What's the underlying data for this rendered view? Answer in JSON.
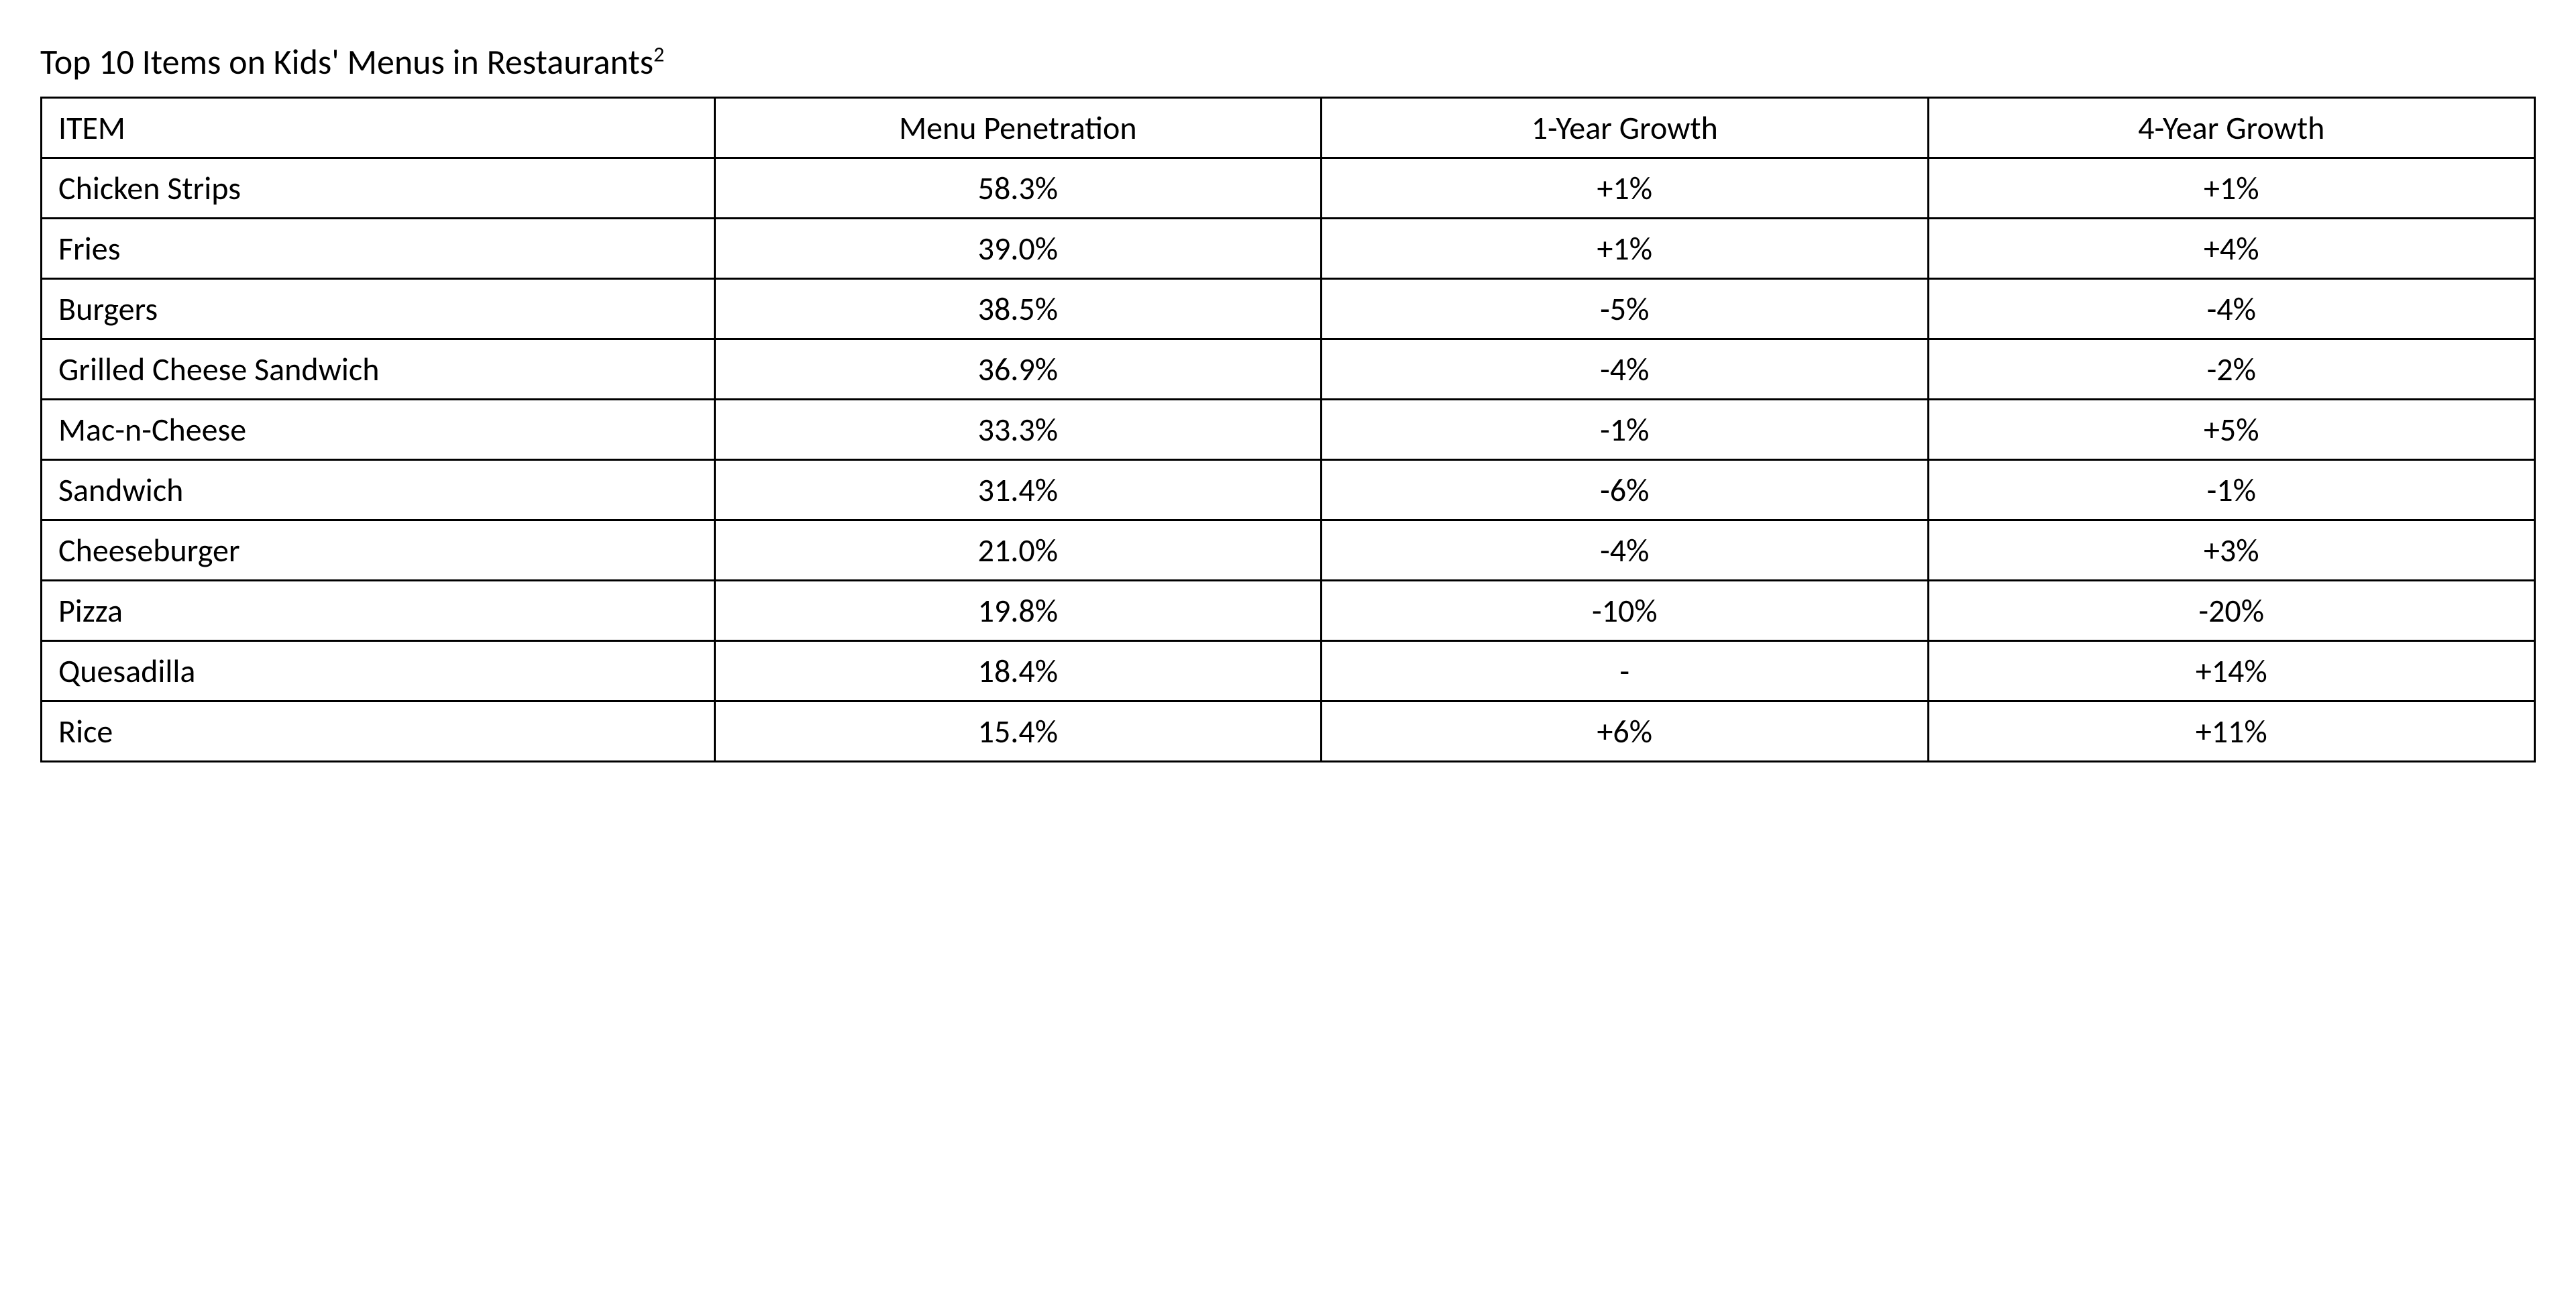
{
  "title": {
    "text": "Top 10 Items on Kids' Menus in Restaurants",
    "superscript": "2",
    "fontsize": 52,
    "color": "#000000"
  },
  "table": {
    "type": "table",
    "background_color": "#ffffff",
    "border_color": "#000000",
    "border_width": 3,
    "cell_fontsize": 48,
    "cell_color": "#000000",
    "columns": [
      {
        "label": "ITEM",
        "align": "left",
        "width_pct": 27
      },
      {
        "label": "Menu Penetration",
        "align": "center",
        "width_pct": 24.333
      },
      {
        "label": "1-Year Growth",
        "align": "center",
        "width_pct": 24.333
      },
      {
        "label": "4-Year Growth",
        "align": "center",
        "width_pct": 24.333
      }
    ],
    "rows": [
      {
        "item": "Chicken Strips",
        "penetration": "58.3%",
        "growth1": "+1%",
        "growth4": "+1%"
      },
      {
        "item": "Fries",
        "penetration": "39.0%",
        "growth1": "+1%",
        "growth4": "+4%"
      },
      {
        "item": "Burgers",
        "penetration": "38.5%",
        "growth1": "-5%",
        "growth4": "-4%"
      },
      {
        "item": "Grilled Cheese Sandwich",
        "penetration": "36.9%",
        "growth1": "-4%",
        "growth4": "-2%"
      },
      {
        "item": "Mac-n-Cheese",
        "penetration": "33.3%",
        "growth1": "-1%",
        "growth4": "+5%"
      },
      {
        "item": "Sandwich",
        "penetration": "31.4%",
        "growth1": "-6%",
        "growth4": "-1%"
      },
      {
        "item": "Cheeseburger",
        "penetration": "21.0%",
        "growth1": "-4%",
        "growth4": "+3%"
      },
      {
        "item": "Pizza",
        "penetration": "19.8%",
        "growth1": "-10%",
        "growth4": "-20%"
      },
      {
        "item": "Quesadilla",
        "penetration": "18.4%",
        "growth1": "-",
        "growth4": "+14%"
      },
      {
        "item": "Rice",
        "penetration": "15.4%",
        "growth1": "+6%",
        "growth4": "+11%"
      }
    ]
  }
}
